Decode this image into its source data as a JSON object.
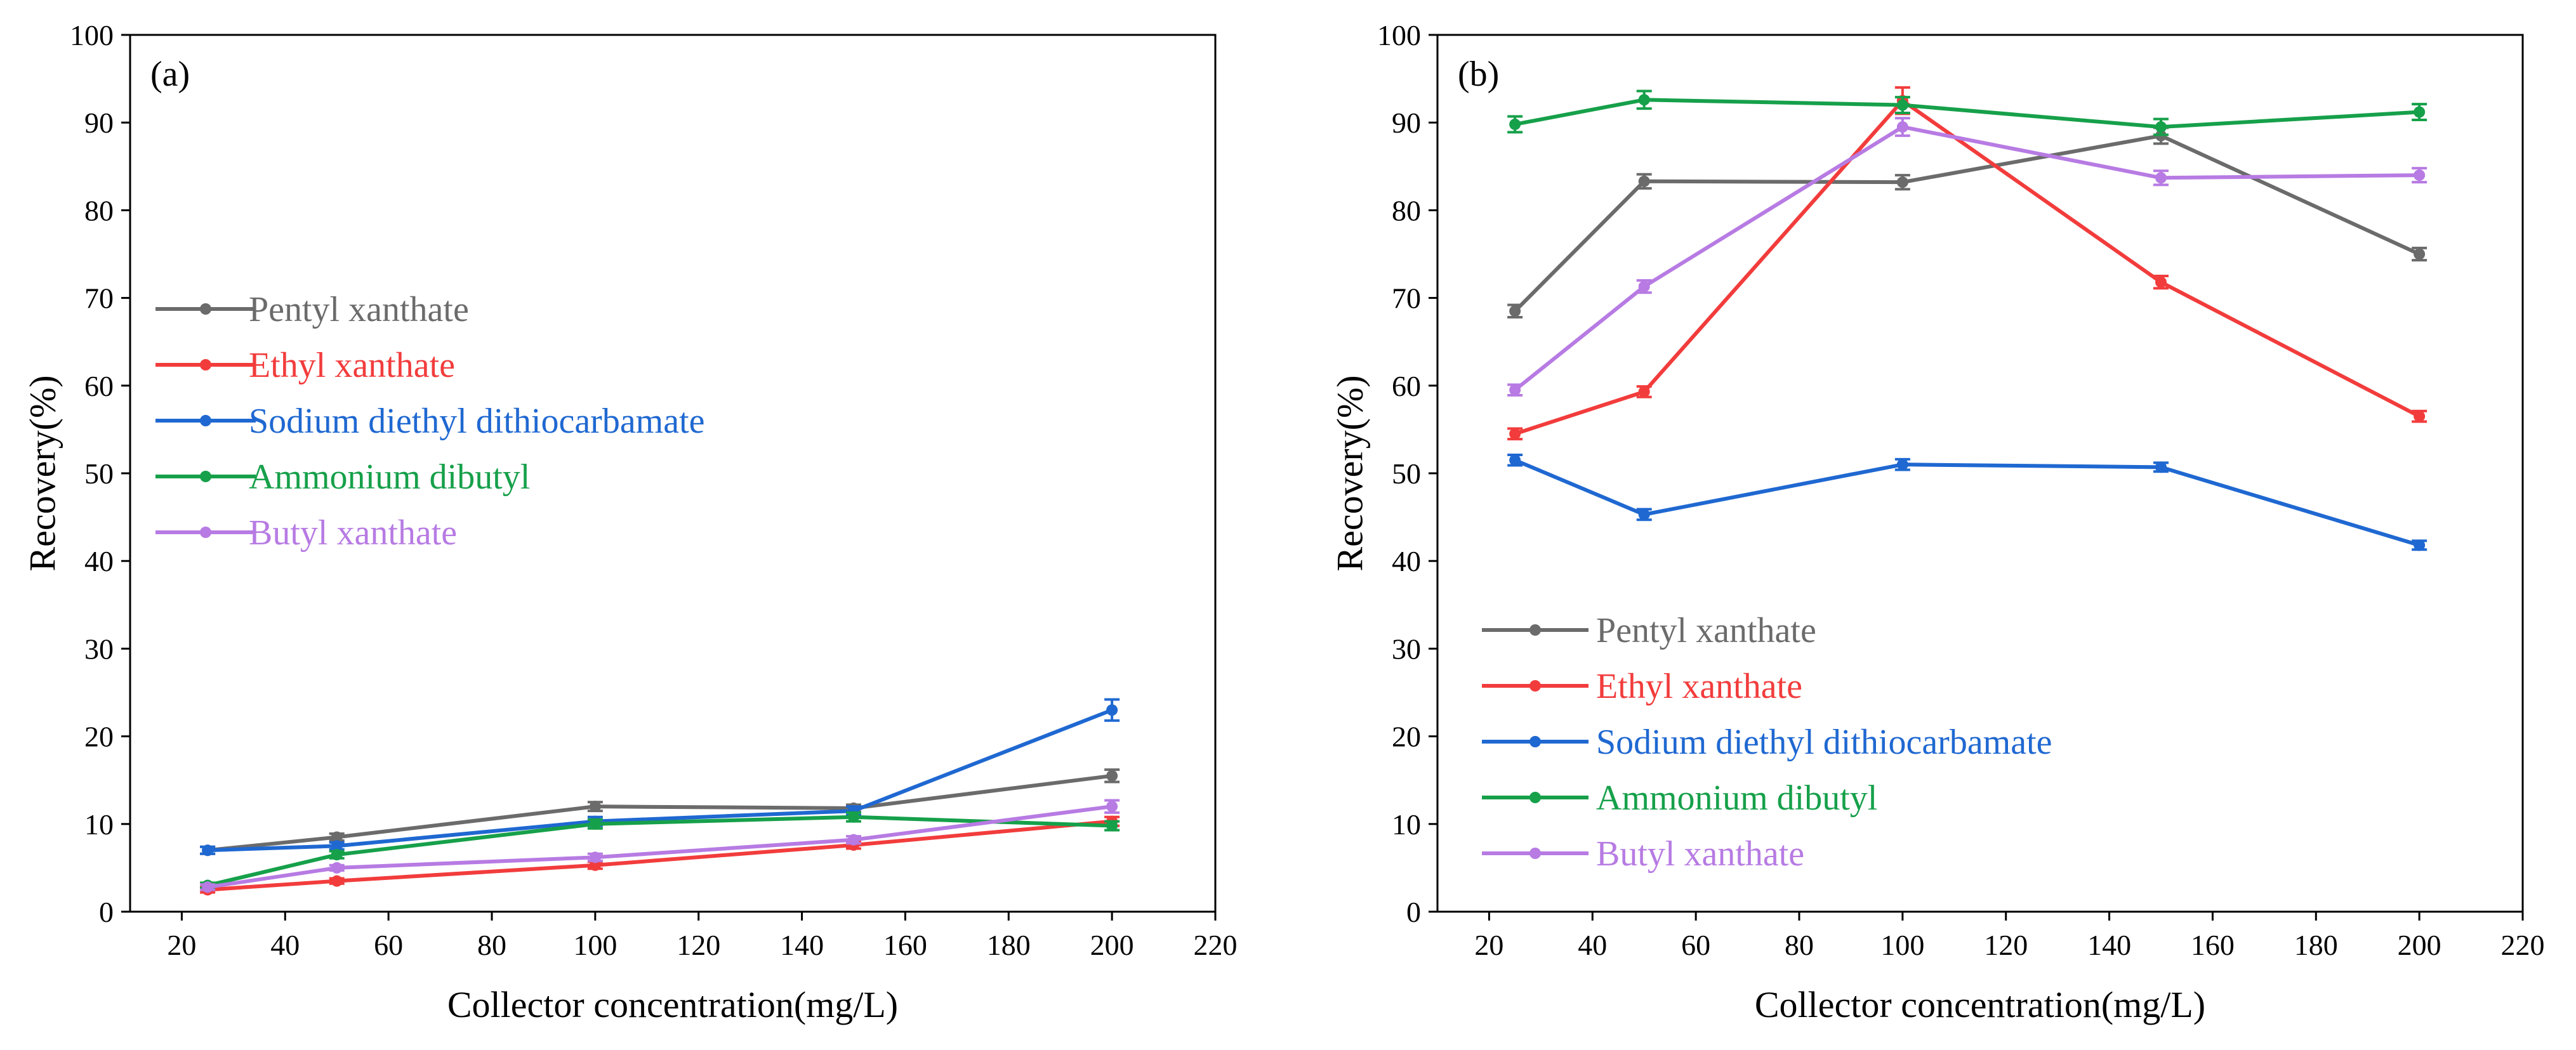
{
  "colors": {
    "Pentyl xanthate": "#6b6b6b",
    "Ethyl xanthate": "#f23c3c",
    "Sodium diethyl dithiocarbamate": "#1f68d1",
    "Ammonium dibutyl": "#16a04a",
    "Butyl xanthate": "#b77be3"
  },
  "chart_data": [
    {
      "type": "line",
      "panel": "(a)",
      "xlabel": "Collector concentration(mg/L)",
      "ylabel": "Recovery(%)",
      "xlim": [
        10,
        220
      ],
      "ylim": [
        0,
        100
      ],
      "xticks": [
        20,
        40,
        60,
        80,
        100,
        120,
        140,
        160,
        180,
        200,
        220
      ],
      "yticks": [
        0,
        10,
        20,
        30,
        40,
        50,
        60,
        70,
        80,
        90,
        100
      ],
      "x": [
        25,
        50,
        100,
        150,
        200
      ],
      "legend_position": "center-left",
      "series": [
        {
          "name": "Pentyl xanthate",
          "values": [
            7.0,
            8.5,
            12.0,
            11.8,
            15.5
          ],
          "errors": [
            0.4,
            0.4,
            0.5,
            0.4,
            0.7
          ]
        },
        {
          "name": "Ethyl xanthate",
          "values": [
            2.5,
            3.5,
            5.3,
            7.6,
            10.3
          ],
          "errors": [
            0.3,
            0.3,
            0.4,
            0.4,
            0.5
          ]
        },
        {
          "name": "Sodium diethyl dithiocarbamate",
          "values": [
            7.0,
            7.5,
            10.3,
            11.5,
            23.0
          ],
          "errors": [
            0.4,
            0.4,
            0.5,
            0.5,
            1.2
          ]
        },
        {
          "name": "Ammonium dibutyl",
          "values": [
            3.0,
            6.5,
            10.0,
            10.8,
            9.8
          ],
          "errors": [
            0.3,
            0.4,
            0.5,
            0.5,
            0.5
          ]
        },
        {
          "name": "Butyl xanthate",
          "values": [
            2.8,
            5.0,
            6.2,
            8.2,
            12.0
          ],
          "errors": [
            0.3,
            0.3,
            0.4,
            0.4,
            0.7
          ]
        }
      ]
    },
    {
      "type": "line",
      "panel": "(b)",
      "xlabel": "Collector concentration(mg/L)",
      "ylabel": "Recovery(%)",
      "xlim": [
        10,
        220
      ],
      "ylim": [
        0,
        100
      ],
      "xticks": [
        20,
        40,
        60,
        80,
        100,
        120,
        140,
        160,
        180,
        200,
        220
      ],
      "yticks": [
        0,
        10,
        20,
        30,
        40,
        50,
        60,
        70,
        80,
        90,
        100
      ],
      "x": [
        25,
        50,
        100,
        150,
        200
      ],
      "legend_position": "bottom-left",
      "series": [
        {
          "name": "Pentyl xanthate",
          "values": [
            68.5,
            83.3,
            83.2,
            88.5,
            75.0
          ],
          "errors": [
            0.7,
            0.8,
            0.8,
            0.9,
            0.7
          ]
        },
        {
          "name": "Ethyl xanthate",
          "values": [
            54.5,
            59.3,
            92.5,
            71.8,
            56.5
          ],
          "errors": [
            0.6,
            0.6,
            1.5,
            0.7,
            0.6
          ]
        },
        {
          "name": "Sodium diethyl dithiocarbamate",
          "values": [
            51.5,
            45.3,
            51.0,
            50.7,
            41.8
          ],
          "errors": [
            0.6,
            0.6,
            0.6,
            0.5,
            0.5
          ]
        },
        {
          "name": "Ammonium dibutyl",
          "values": [
            89.8,
            92.6,
            92.0,
            89.5,
            91.2
          ],
          "errors": [
            0.9,
            1.0,
            0.9,
            0.9,
            0.9
          ]
        },
        {
          "name": "Butyl xanthate",
          "values": [
            59.5,
            71.3,
            89.5,
            83.7,
            84.0
          ],
          "errors": [
            0.6,
            0.7,
            1.0,
            0.8,
            0.8
          ]
        }
      ]
    }
  ]
}
